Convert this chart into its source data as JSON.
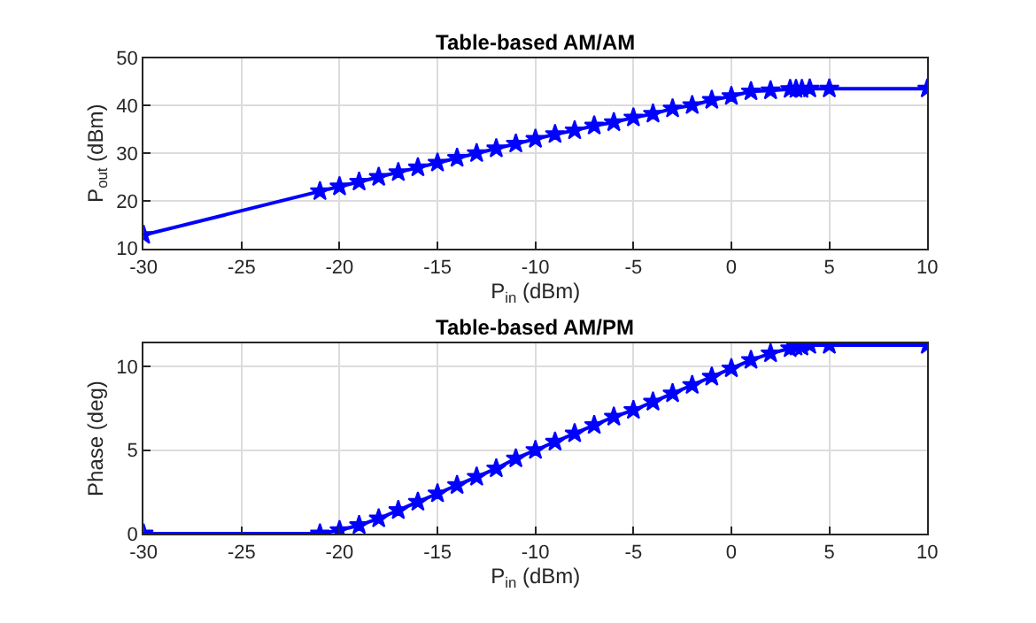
{
  "chart_data": [
    {
      "type": "line",
      "title": "Table-based AM/AM",
      "xlabel": "P$_{in}$ (dBm)",
      "ylabel": "P$_{out}$ (dBm)",
      "x": [
        -30,
        -21,
        -20,
        -19,
        -18,
        -17,
        -16,
        -15,
        -14,
        -13,
        -12,
        -11,
        -10,
        -9,
        -8,
        -7,
        -6,
        -5,
        -4,
        -3,
        -2,
        -1,
        0,
        1,
        2,
        3,
        3.3,
        3.6,
        4,
        5,
        10
      ],
      "series": [
        {
          "color": "#0000ff",
          "marker": "star",
          "values": [
            12.8,
            22,
            23,
            24,
            25,
            26,
            27,
            28,
            29,
            30,
            31,
            32,
            33,
            34,
            34.8,
            35.8,
            36.5,
            37.5,
            38.3,
            39.4,
            40.1,
            41.2,
            42,
            43,
            43.2,
            43.5,
            43.5,
            43.5,
            43.6,
            43.6,
            43.6
          ]
        }
      ],
      "xlim": [
        -30,
        10
      ],
      "xticks": [
        -30,
        -25,
        -20,
        -15,
        -10,
        -5,
        0,
        5,
        10
      ],
      "ylim": [
        10,
        50
      ],
      "yticks": [
        10,
        20,
        30,
        40,
        50
      ],
      "grid": true,
      "line_style": "solid"
    },
    {
      "type": "line",
      "title": "Table-based AM/PM",
      "xlabel": "P$_{in}$ (dBm)",
      "ylabel": "Phase (deg)",
      "x": [
        -30,
        -21,
        -20,
        -19,
        -18,
        -17,
        -16,
        -15,
        -14,
        -13,
        -12,
        -11,
        -10,
        -9,
        -8,
        -7,
        -6,
        -5,
        -4,
        -3,
        -2,
        -1,
        0,
        1,
        2,
        3,
        3.3,
        3.6,
        4,
        5,
        10
      ],
      "series": [
        {
          "color": "#0000ff",
          "marker": "star",
          "values": [
            0,
            0,
            0.2,
            0.5,
            0.9,
            1.4,
            1.9,
            2.4,
            2.9,
            3.4,
            3.9,
            4.5,
            5,
            5.5,
            6,
            6.5,
            7,
            7.4,
            7.9,
            8.4,
            8.9,
            9.4,
            9.9,
            10.4,
            10.8,
            11.1,
            11.2,
            11.2,
            11.3,
            11.3,
            11.3
          ]
        }
      ],
      "xlim": [
        -30,
        10
      ],
      "xticks": [
        -30,
        -25,
        -20,
        -15,
        -10,
        -5,
        0,
        5,
        10
      ],
      "ylim": [
        0,
        11.4
      ],
      "yticks": [
        0,
        5,
        10
      ],
      "grid": true,
      "line_style": "solid"
    }
  ]
}
